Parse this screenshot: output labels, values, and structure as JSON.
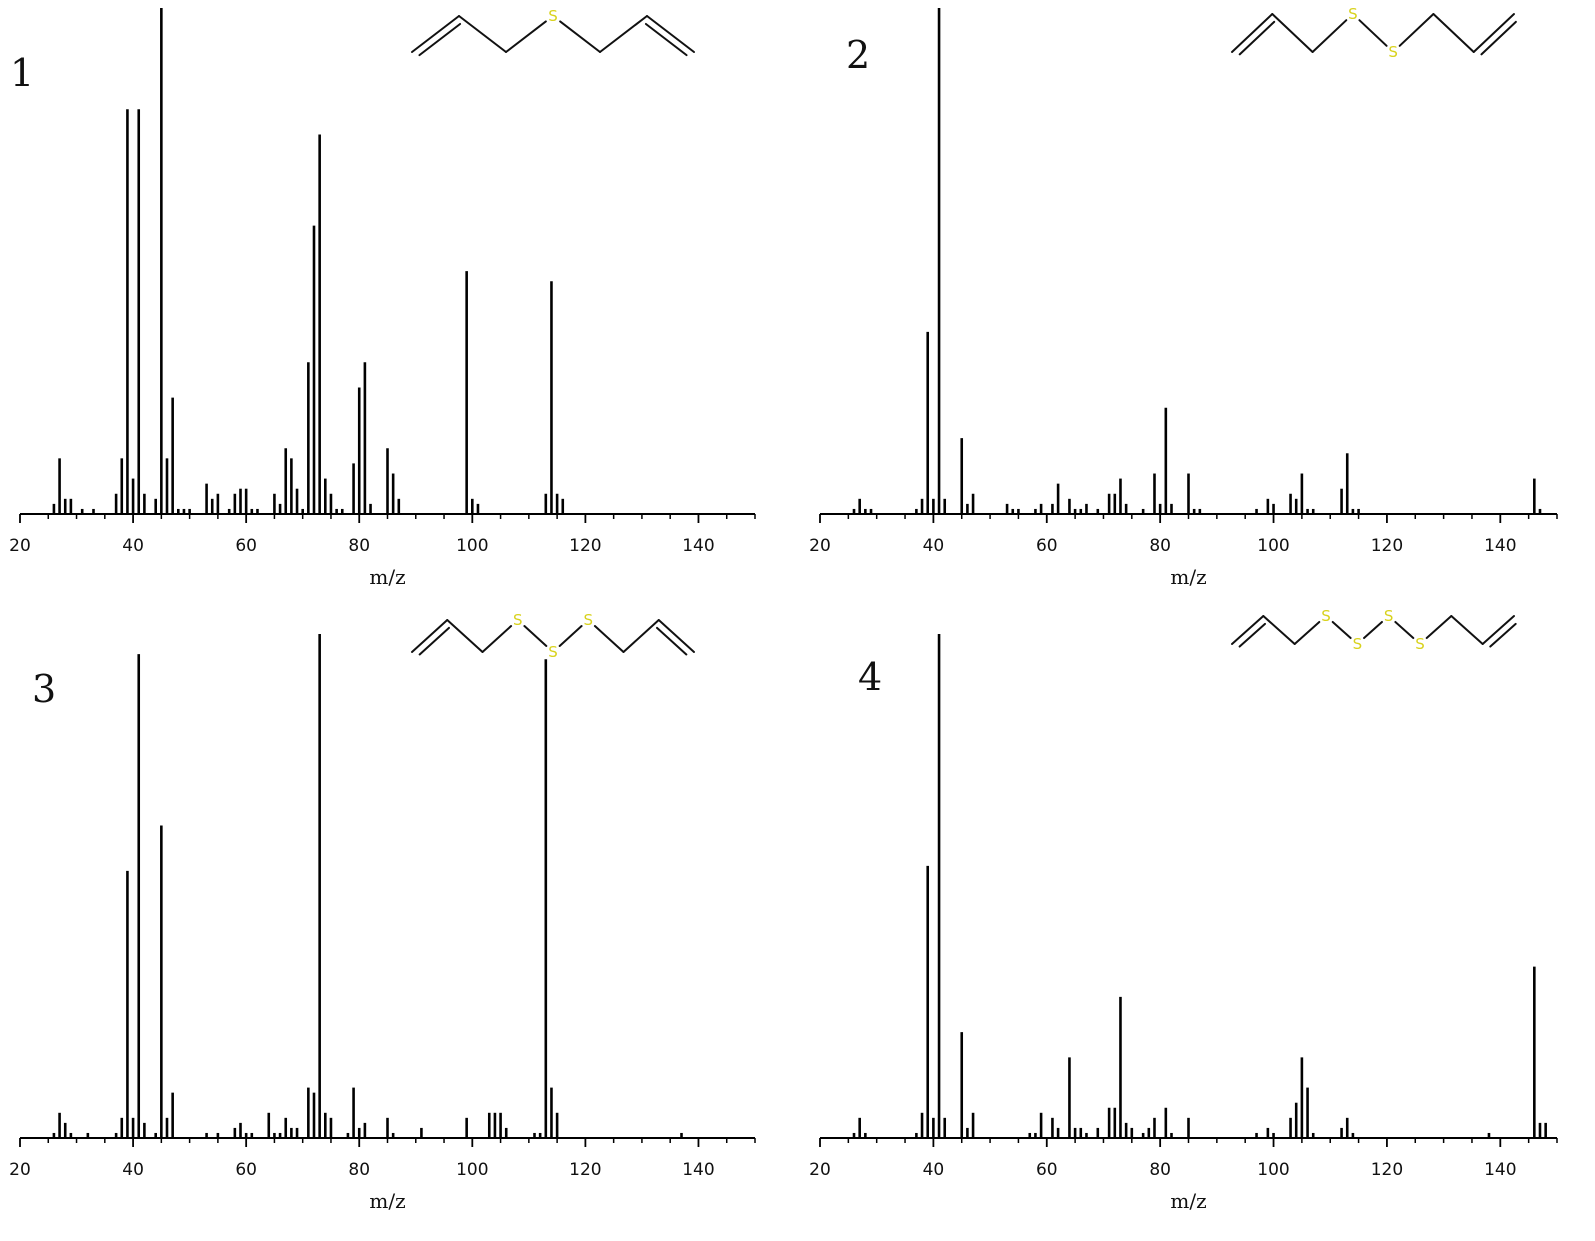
{
  "colors": {
    "bars": "#000000",
    "axis": "#000000",
    "sulfur": "#d8d21c",
    "bond": "#111111"
  },
  "chart_data": [
    {
      "type": "bar",
      "panel_label": "1",
      "xlabel": "m/z",
      "ylabel": "",
      "xlim": [
        20,
        150
      ],
      "ylim": [
        0,
        100
      ],
      "xticks": [
        20,
        40,
        60,
        80,
        100,
        120,
        140
      ],
      "molecule_sulfur_count": 1,
      "peaks": {
        "x": [
          26,
          27,
          28,
          29,
          31,
          33,
          37,
          38,
          39,
          40,
          41,
          42,
          44,
          45,
          46,
          47,
          48,
          49,
          50,
          53,
          54,
          55,
          57,
          58,
          59,
          60,
          61,
          62,
          65,
          66,
          67,
          68,
          69,
          70,
          71,
          72,
          73,
          74,
          75,
          76,
          77,
          79,
          80,
          81,
          82,
          85,
          86,
          87,
          99,
          100,
          101,
          113,
          114,
          115,
          116
        ],
        "y": [
          2,
          11,
          3,
          3,
          1,
          1,
          4,
          11,
          80,
          7,
          80,
          4,
          3,
          100,
          11,
          23,
          1,
          1,
          1,
          6,
          3,
          4,
          1,
          4,
          5,
          5,
          1,
          1,
          4,
          2,
          13,
          11,
          5,
          1,
          30,
          57,
          75,
          7,
          4,
          1,
          1,
          10,
          25,
          30,
          2,
          13,
          8,
          3,
          48,
          3,
          2,
          4,
          46,
          4,
          3
        ]
      }
    },
    {
      "type": "bar",
      "panel_label": "2",
      "xlabel": "m/z",
      "ylabel": "",
      "xlim": [
        20,
        150
      ],
      "ylim": [
        0,
        100
      ],
      "xticks": [
        20,
        40,
        60,
        80,
        100,
        120,
        140
      ],
      "molecule_sulfur_count": 2,
      "peaks": {
        "x": [
          26,
          27,
          28,
          29,
          37,
          38,
          39,
          40,
          41,
          42,
          45,
          46,
          47,
          53,
          54,
          55,
          58,
          59,
          61,
          62,
          64,
          65,
          66,
          67,
          69,
          71,
          72,
          73,
          74,
          77,
          79,
          80,
          81,
          82,
          85,
          86,
          87,
          97,
          99,
          100,
          103,
          104,
          105,
          106,
          107,
          112,
          113,
          114,
          115,
          146,
          147
        ],
        "y": [
          1,
          3,
          1,
          1,
          1,
          3,
          36,
          3,
          100,
          3,
          15,
          2,
          4,
          2,
          1,
          1,
          1,
          2,
          2,
          6,
          3,
          1,
          1,
          2,
          1,
          4,
          4,
          7,
          2,
          1,
          8,
          2,
          21,
          2,
          8,
          1,
          1,
          1,
          3,
          2,
          4,
          3,
          8,
          1,
          1,
          5,
          12,
          1,
          1,
          7,
          1
        ]
      }
    },
    {
      "type": "bar",
      "panel_label": "3",
      "xlabel": "m/z",
      "ylabel": "",
      "xlim": [
        20,
        150
      ],
      "ylim": [
        0,
        100
      ],
      "xticks": [
        20,
        40,
        60,
        80,
        100,
        120,
        140
      ],
      "molecule_sulfur_count": 3,
      "peaks": {
        "x": [
          26,
          27,
          28,
          29,
          32,
          37,
          38,
          39,
          40,
          41,
          42,
          44,
          45,
          46,
          47,
          53,
          55,
          58,
          59,
          60,
          61,
          64,
          65,
          66,
          67,
          68,
          69,
          71,
          72,
          73,
          74,
          75,
          78,
          79,
          80,
          81,
          85,
          86,
          91,
          99,
          103,
          104,
          105,
          106,
          111,
          112,
          113,
          114,
          115,
          137
        ],
        "y": [
          1,
          5,
          3,
          1,
          1,
          1,
          4,
          53,
          4,
          96,
          3,
          1,
          62,
          4,
          9,
          1,
          1,
          2,
          3,
          1,
          1,
          5,
          1,
          1,
          4,
          2,
          2,
          10,
          9,
          100,
          5,
          4,
          1,
          10,
          2,
          3,
          4,
          1,
          2,
          4,
          5,
          5,
          5,
          2,
          1,
          1,
          95,
          10,
          5,
          1
        ]
      }
    },
    {
      "type": "bar",
      "panel_label": "4",
      "xlabel": "m/z",
      "ylabel": "",
      "xlim": [
        20,
        150
      ],
      "ylim": [
        0,
        100
      ],
      "xticks": [
        20,
        40,
        60,
        80,
        100,
        120,
        140
      ],
      "molecule_sulfur_count": 4,
      "peaks": {
        "x": [
          26,
          27,
          28,
          37,
          38,
          39,
          40,
          41,
          42,
          45,
          46,
          47,
          57,
          58,
          59,
          61,
          62,
          64,
          65,
          66,
          67,
          69,
          71,
          72,
          73,
          74,
          75,
          77,
          78,
          79,
          81,
          82,
          85,
          97,
          99,
          100,
          103,
          104,
          105,
          106,
          107,
          112,
          113,
          114,
          138,
          146,
          147,
          148
        ],
        "y": [
          1,
          4,
          1,
          1,
          5,
          54,
          4,
          100,
          4,
          21,
          2,
          5,
          1,
          1,
          5,
          4,
          2,
          16,
          2,
          2,
          1,
          2,
          6,
          6,
          28,
          3,
          2,
          1,
          2,
          4,
          6,
          1,
          4,
          1,
          2,
          1,
          4,
          7,
          16,
          10,
          1,
          2,
          4,
          1,
          1,
          34,
          3,
          3
        ]
      }
    }
  ]
}
